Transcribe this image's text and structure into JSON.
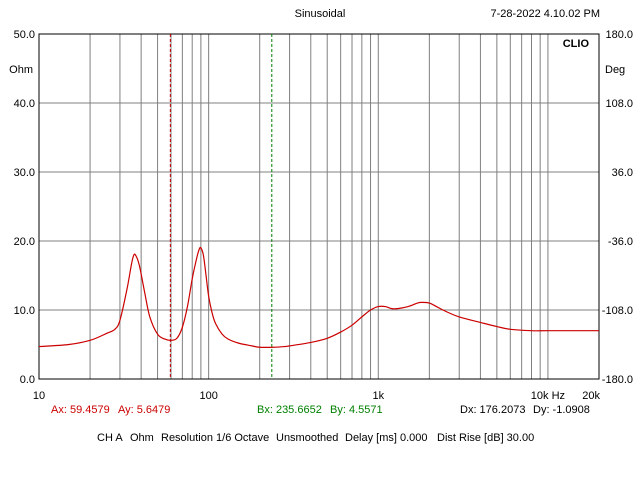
{
  "header": {
    "title": "Sinusoidal",
    "timestamp": "7-28-2022 4.10.02 PM",
    "logo": "CLIO"
  },
  "chart_data": {
    "type": "line",
    "title": "Sinusoidal",
    "xscale": "log",
    "xlim": [
      10,
      20000
    ],
    "ylim": [
      0,
      50
    ],
    "ylabel": "Ohm",
    "y2label": "Deg",
    "y2lim": [
      -180,
      180
    ],
    "grid": true,
    "x_tick_labels": [
      "10",
      "100",
      "1k",
      "10k Hz",
      "20k"
    ],
    "y_tick_labels": [
      "0.0",
      "10.0",
      "20.0",
      "30.0",
      "40.0",
      "50.0"
    ],
    "y2_tick_labels": [
      "-180.0",
      "-108.0",
      "-36.0",
      "36.0",
      "108.0",
      "180.0"
    ],
    "series": [
      {
        "color": "#cc0000",
        "x": [
          10,
          15,
          20,
          25,
          28,
          30,
          33,
          35,
          36,
          37,
          39,
          42,
          45,
          50,
          55,
          60,
          65,
          70,
          75,
          80,
          85,
          88,
          90,
          93,
          96,
          100,
          105,
          110,
          120,
          130,
          150,
          180,
          200,
          240,
          280,
          300,
          400,
          500,
          600,
          700,
          800,
          900,
          1000,
          1100,
          1200,
          1300,
          1500,
          1700,
          1800,
          2000,
          2200,
          2500,
          3000,
          4000,
          5000,
          6000,
          8000,
          10000,
          15000,
          20000
        ],
        "y": [
          4.7,
          5.0,
          5.6,
          6.6,
          7.2,
          8.5,
          13.0,
          16.5,
          17.8,
          18.0,
          16.5,
          12.5,
          9.0,
          6.5,
          5.8,
          5.6,
          5.9,
          7.5,
          10.5,
          14.5,
          17.5,
          18.8,
          19.0,
          18.0,
          15.5,
          12.0,
          9.5,
          8.0,
          6.5,
          5.8,
          5.2,
          4.8,
          4.6,
          4.6,
          4.7,
          4.8,
          5.3,
          5.9,
          6.8,
          7.8,
          9.0,
          10.0,
          10.5,
          10.5,
          10.2,
          10.2,
          10.5,
          11.0,
          11.1,
          11.0,
          10.5,
          9.8,
          9.0,
          8.2,
          7.6,
          7.2,
          7.0,
          7.0,
          7.0,
          7.0
        ]
      }
    ],
    "cursor_a": {
      "x": 59.4579,
      "color": "#cc0000"
    },
    "cursor_b": {
      "x": 235.6652,
      "color": "#008000"
    }
  },
  "readouts": {
    "ax": "Ax: 59.4579",
    "ay": "Ay: 5.6479",
    "bx": "Bx: 235.6652",
    "by": "By: 4.5571",
    "dx": "Dx: 176.2073",
    "dy": "Dy: -1.0908"
  },
  "status": {
    "channel": "CH A",
    "unit": "Ohm",
    "resolution": "Resolution 1/6 Octave",
    "smoothing": "Unsmoothed",
    "delay": "Delay [ms] 0.000",
    "dist_rise": "Dist Rise [dB] 30.00"
  }
}
